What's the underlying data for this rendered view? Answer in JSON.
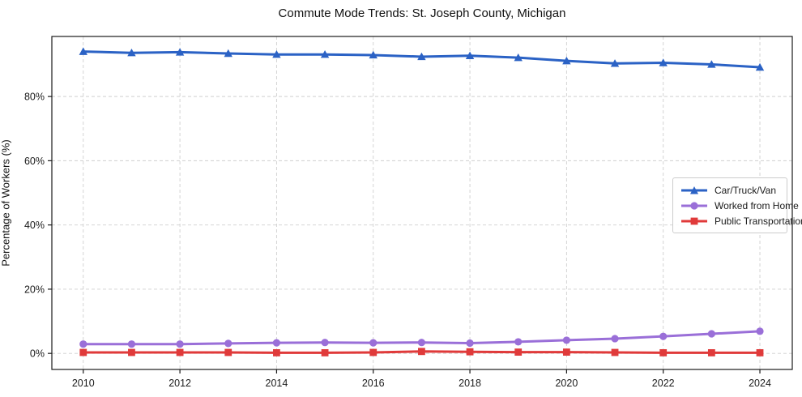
{
  "title": "Commute Mode Trends: St. Joseph County, Michigan",
  "colors": {
    "background": "#ffffff",
    "grid": "#cfcfcf",
    "spine": "#1a1a1a",
    "text": "#1a1a1a",
    "car_blue": "#2b62c5",
    "home_purple": "#9a6fd8",
    "transit_red": "#e03a3a",
    "legend_border": "#cccccc"
  },
  "chart_data": {
    "type": "line",
    "title": "Commute Mode Trends: St. Joseph County, Michigan",
    "xlabel": "",
    "ylabel": "Percentage of Workers (%)",
    "x": [
      2010,
      2011,
      2012,
      2013,
      2014,
      2015,
      2016,
      2017,
      2018,
      2019,
      2020,
      2021,
      2022,
      2023,
      2024
    ],
    "series": [
      {
        "name": "Car/Truck/Van",
        "color": "#2b62c5",
        "marker": "triangle",
        "values": [
          94.0,
          93.6,
          93.8,
          93.4,
          93.1,
          93.1,
          92.9,
          92.4,
          92.7,
          92.1,
          91.1,
          90.3,
          90.5,
          90.0,
          89.1
        ]
      },
      {
        "name": "Worked from Home",
        "color": "#9a6fd8",
        "marker": "circle",
        "values": [
          2.9,
          2.9,
          2.9,
          3.1,
          3.3,
          3.4,
          3.3,
          3.4,
          3.2,
          3.6,
          4.1,
          4.6,
          5.3,
          6.1,
          6.9
        ]
      },
      {
        "name": "Public Transportation",
        "color": "#e03a3a",
        "marker": "square",
        "values": [
          0.3,
          0.3,
          0.3,
          0.3,
          0.2,
          0.2,
          0.3,
          0.6,
          0.5,
          0.4,
          0.4,
          0.3,
          0.2,
          0.2,
          0.2
        ]
      }
    ],
    "xticks": [
      2010,
      2012,
      2014,
      2016,
      2018,
      2020,
      2022,
      2024
    ],
    "xtick_labels": [
      "2010",
      "2012",
      "2014",
      "2016",
      "2018",
      "2020",
      "2022",
      "2024"
    ],
    "yticks": [
      0,
      20,
      40,
      60,
      80
    ],
    "ytick_labels": [
      "0%",
      "20%",
      "40%",
      "60%",
      "80%"
    ],
    "xlim": [
      2009.35,
      2024.67
    ],
    "ylim": [
      -5.0,
      98.7
    ],
    "grid": true,
    "legend_position": "center-right"
  }
}
